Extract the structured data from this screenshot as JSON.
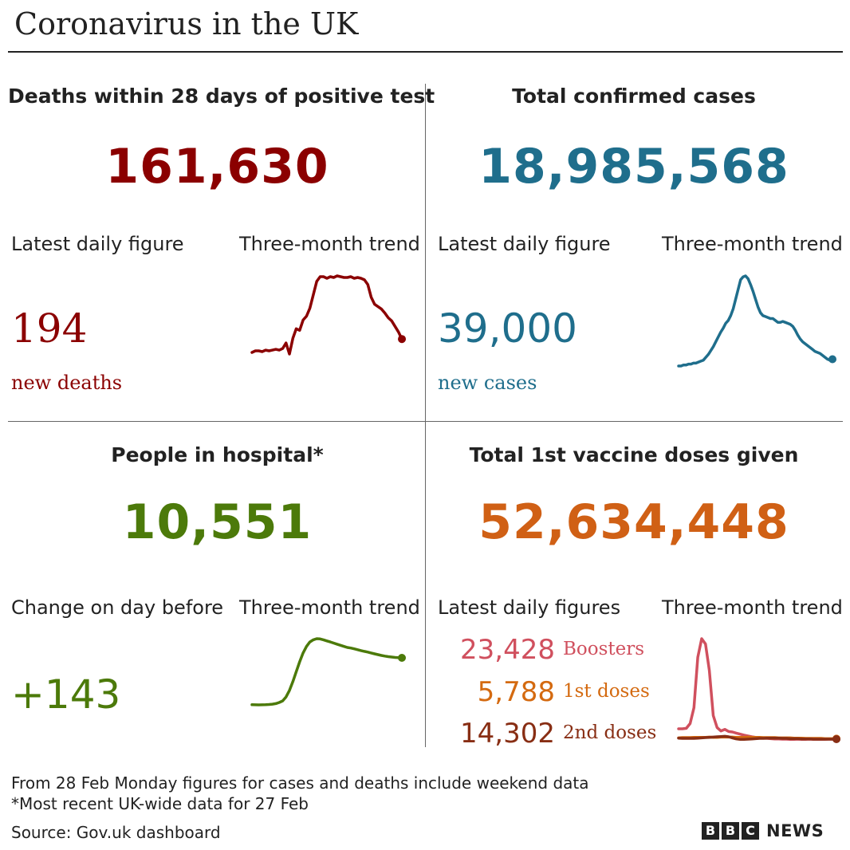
{
  "title": "Coronavirus in the UK",
  "colors": {
    "deaths": "#8b0000",
    "cases": "#1f6e8c",
    "hospital": "#4c7a0a",
    "vaccine": "#d06015",
    "boosters": "#d0505e",
    "first_doses": "#d46a10",
    "second_doses": "#882e14"
  },
  "panels": {
    "deaths": {
      "heading": "Deaths within 28 days of positive test",
      "total": "161,630",
      "daily_label": "Latest daily figure",
      "trend_label": "Three-month trend",
      "daily_value": "194",
      "daily_unit": "new deaths"
    },
    "cases": {
      "heading": "Total confirmed cases",
      "total": "18,985,568",
      "daily_label": "Latest daily figure",
      "trend_label": "Three-month trend",
      "daily_value": "39,000",
      "daily_unit": "new cases"
    },
    "hospital": {
      "heading": "People in hospital*",
      "total": "10,551",
      "daily_label": "Change on day before",
      "trend_label": "Three-month trend",
      "daily_value": "+143"
    },
    "vaccine": {
      "heading": "Total 1st vaccine doses given",
      "total": "52,634,448",
      "daily_label": "Latest daily figures",
      "trend_label": "Three-month trend",
      "doses": [
        {
          "value": "23,428",
          "label": "Boosters"
        },
        {
          "value": "5,788",
          "label": "1st doses"
        },
        {
          "value": "14,302",
          "label": "2nd doses"
        }
      ]
    }
  },
  "notes": {
    "line1": "From 28 Feb Monday figures for cases and deaths include weekend data",
    "line2": "*Most recent UK-wide data for 27 Feb",
    "source": "Source: Gov.uk dashboard"
  },
  "logo": {
    "b1": "B",
    "b2": "B",
    "c": "C",
    "news": "NEWS"
  },
  "chart_data": [
    {
      "type": "line",
      "series": [
        {
          "values": [
            22,
            24,
            24,
            23,
            25,
            24,
            25,
            26,
            25,
            27,
            34,
            20,
            40,
            52,
            50,
            63,
            68,
            78,
            95,
            112,
            118,
            118,
            116,
            118,
            117,
            119,
            118,
            117,
            117,
            118,
            116,
            117,
            116,
            114,
            108,
            92,
            83,
            80,
            77,
            72,
            66,
            62,
            55,
            48,
            39
          ]
        }
      ]
    },
    {
      "type": "line",
      "series": [
        {
          "values": [
            3,
            3,
            4,
            4,
            5,
            5,
            6,
            6,
            7,
            8,
            9,
            12,
            15,
            19,
            23,
            28,
            33,
            38,
            42,
            47,
            50,
            55,
            62,
            72,
            82,
            92,
            95,
            96,
            93,
            87,
            80,
            72,
            64,
            58,
            55,
            54,
            53,
            52,
            52,
            50,
            48,
            48,
            49,
            48,
            47,
            46,
            44,
            40,
            35,
            31,
            28,
            26,
            24,
            22,
            20,
            18,
            17,
            16,
            14,
            12,
            10,
            9,
            10
          ]
        }
      ]
    },
    {
      "type": "line",
      "series": [
        {
          "values": [
            4000,
            3990,
            3985,
            3990,
            4000,
            4020,
            4050,
            4100,
            4200,
            4350,
            4700,
            5300,
            6100,
            7000,
            7900,
            8700,
            9300,
            9700,
            9900,
            10000,
            9980,
            9900,
            9800,
            9700,
            9600,
            9500,
            9400,
            9300,
            9200,
            9150,
            9080,
            9000,
            8920,
            8850,
            8780,
            8700,
            8620,
            8550,
            8480,
            8420,
            8370,
            8330,
            8300,
            8280,
            8260
          ]
        }
      ]
    },
    {
      "type": "line",
      "series": [
        {
          "name": "Boosters",
          "values": [
            60,
            60,
            62,
            80,
            140,
            330,
            400,
            380,
            280,
            110,
            65,
            52,
            58,
            50,
            48,
            44,
            40,
            36,
            33,
            30,
            28,
            26,
            25,
            24,
            23,
            22,
            22,
            21,
            21,
            20,
            20,
            21,
            20,
            20,
            21,
            20,
            20,
            20,
            20,
            21,
            21,
            22
          ]
        },
        {
          "name": "1st doses",
          "values": [
            26,
            27,
            27,
            27,
            28,
            28,
            28,
            28,
            29,
            28,
            28,
            29,
            29,
            29,
            29,
            28,
            28,
            28,
            29,
            28,
            28,
            28,
            27,
            27,
            27,
            27,
            26,
            26,
            26,
            26,
            25,
            25,
            25,
            24,
            24,
            24,
            24,
            24,
            23,
            23,
            23,
            23
          ]
        },
        {
          "name": "2nd doses",
          "values": [
            25,
            24,
            24,
            24,
            24,
            25,
            26,
            27,
            28,
            29,
            30,
            31,
            32,
            30,
            26,
            22,
            20,
            20,
            21,
            22,
            23,
            24,
            24,
            25,
            25,
            25,
            25,
            24,
            24,
            23,
            23,
            23,
            22,
            22,
            22,
            21,
            21,
            21,
            21,
            21,
            21,
            21
          ]
        }
      ]
    }
  ]
}
